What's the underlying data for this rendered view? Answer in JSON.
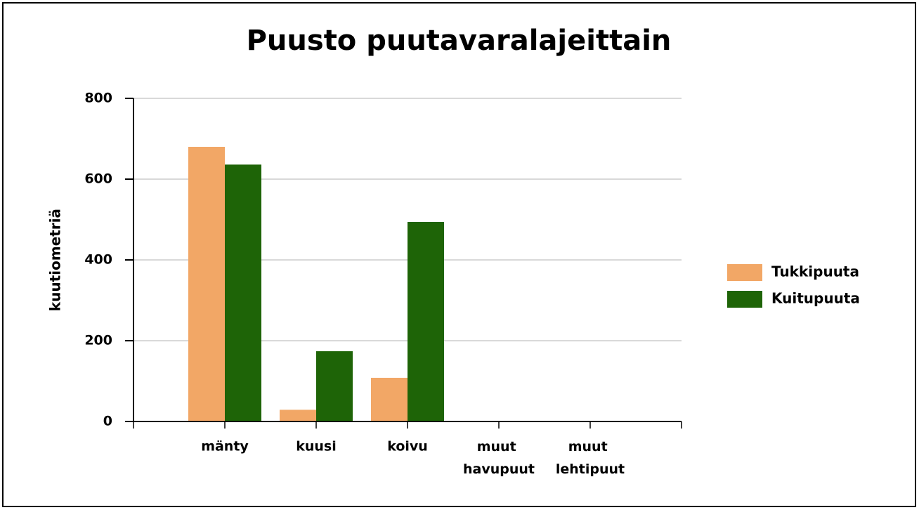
{
  "chart_data": {
    "type": "bar",
    "title": "Puusto puutavaralajeittain",
    "y_label": "kuutiometriä",
    "categories": [
      null,
      "mänty",
      "kuusi",
      "koivu",
      "muut havupuut",
      "muut lehtipuut",
      null
    ],
    "series": [
      {
        "name": "Tukkipuuta",
        "color": "#f2a766",
        "values": [
          null,
          680,
          29,
          108,
          0,
          0,
          null
        ]
      },
      {
        "name": "Kuitupuuta",
        "color": "#1e6407",
        "values": [
          null,
          636,
          174,
          494,
          0,
          0,
          null
        ]
      }
    ],
    "ylim": [
      0,
      800
    ],
    "yticks": [
      0,
      200,
      400,
      600,
      800
    ],
    "grid": true,
    "legend": "right"
  }
}
